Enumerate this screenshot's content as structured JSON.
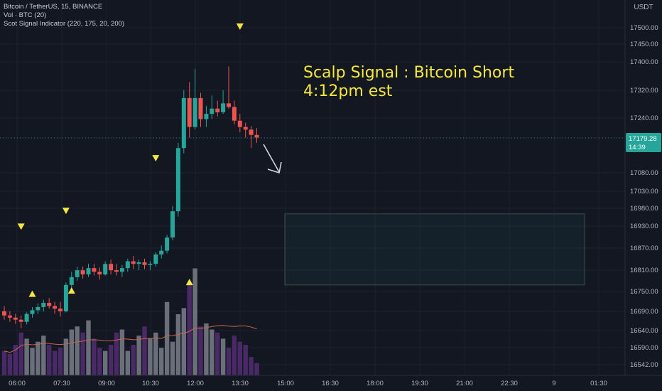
{
  "legend": {
    "symbol": "Bitcoin / TetherUS, 15, BINANCE",
    "volume": "Vol · BTC (20)",
    "indicator": "Scot Signal Indicator (220, 175, 20, 200)"
  },
  "annotation": {
    "line1": "Scalp Signal : Bitcoin Short",
    "line2": "4:12pm est"
  },
  "price_badge": {
    "price": "17179.28",
    "countdown": "14:39"
  },
  "colors": {
    "background": "#131722",
    "up": "#26a69a",
    "down": "#ef5350",
    "signal": "#f5e73b",
    "volume_up": "#6b6f7a",
    "volume_down": "#4a2a66",
    "volume_ma": "#c9664a",
    "price_line": "#26a69a"
  },
  "chart_data": {
    "type": "candlestick",
    "currency": "USDT",
    "x_tick_labels": [
      "06:00",
      "07:30",
      "09:00",
      "10:30",
      "12:00",
      "13:30",
      "15:00",
      "16:30",
      "18:00",
      "19:30",
      "21:00",
      "22:30",
      "9",
      "01:30"
    ],
    "y_tick_labels": [
      "17500.00",
      "17450.00",
      "17400.00",
      "17320.00",
      "17240.00",
      "17179.28",
      "17080.00",
      "17030.00",
      "16980.00",
      "16930.00",
      "16870.00",
      "16810.00",
      "16750.00",
      "16690.00",
      "16640.00",
      "16590.00",
      "16542.00"
    ],
    "ohlc": [
      [
        16850,
        16860,
        16834,
        16842
      ],
      [
        16842,
        16850,
        16830,
        16838
      ],
      [
        16838,
        16845,
        16826,
        16834
      ],
      [
        16834,
        16842,
        16818,
        16830
      ],
      [
        16830,
        16848,
        16825,
        16845
      ],
      [
        16845,
        16858,
        16838,
        16852
      ],
      [
        16852,
        16865,
        16845,
        16858
      ],
      [
        16858,
        16872,
        16850,
        16866
      ],
      [
        16866,
        16875,
        16855,
        16860
      ],
      [
        16860,
        16868,
        16845,
        16855
      ],
      [
        16855,
        16868,
        16840,
        16850
      ],
      [
        16850,
        16905,
        16848,
        16900
      ],
      [
        16900,
        16925,
        16892,
        16915
      ],
      [
        16915,
        16935,
        16908,
        16928
      ],
      [
        16928,
        16935,
        16912,
        16920
      ],
      [
        16920,
        16940,
        16915,
        16932
      ],
      [
        16932,
        16940,
        16918,
        16925
      ],
      [
        16925,
        16933,
        16910,
        16920
      ],
      [
        16920,
        16945,
        16918,
        16940
      ],
      [
        16940,
        16948,
        16920,
        16928
      ],
      [
        16928,
        16940,
        16918,
        16925
      ],
      [
        16925,
        16938,
        16915,
        16932
      ],
      [
        16932,
        16950,
        16925,
        16945
      ],
      [
        16945,
        16955,
        16930,
        16940
      ],
      [
        16940,
        16948,
        16928,
        16943
      ],
      [
        16943,
        16950,
        16930,
        16938
      ],
      [
        16938,
        16945,
        16928,
        16940
      ],
      [
        16940,
        16962,
        16935,
        16958
      ],
      [
        16958,
        16975,
        16950,
        16965
      ],
      [
        16965,
        16995,
        16960,
        16990
      ],
      [
        16990,
        17050,
        16985,
        17040
      ],
      [
        17040,
        17170,
        17030,
        17160
      ],
      [
        17160,
        17270,
        17150,
        17255
      ],
      [
        17255,
        17285,
        17180,
        17200
      ],
      [
        17200,
        17310,
        17195,
        17255
      ],
      [
        17255,
        17265,
        17200,
        17215
      ],
      [
        17215,
        17240,
        17200,
        17225
      ],
      [
        17225,
        17260,
        17215,
        17235
      ],
      [
        17235,
        17250,
        17220,
        17228
      ],
      [
        17228,
        17270,
        17225,
        17245
      ],
      [
        17245,
        17315,
        17235,
        17238
      ],
      [
        17238,
        17250,
        17205,
        17212
      ],
      [
        17212,
        17225,
        17190,
        17200
      ],
      [
        17200,
        17208,
        17180,
        17195
      ],
      [
        17195,
        17202,
        17160,
        17185
      ],
      [
        17185,
        17198,
        17170,
        17180
      ]
    ],
    "volume": [
      8,
      7,
      10,
      14,
      12,
      9,
      11,
      13,
      10,
      8,
      9,
      12,
      15,
      16,
      14,
      18,
      12,
      9,
      8,
      10,
      14,
      15,
      8,
      10,
      13,
      16,
      12,
      14,
      9,
      24,
      11,
      20,
      22,
      30,
      35,
      16,
      17,
      15,
      14,
      12,
      9,
      13,
      11,
      10,
      6,
      4
    ],
    "signals_down": [
      {
        "bar": 3,
        "price": 17010
      },
      {
        "bar": 11,
        "price": 17040
      },
      {
        "bar": 27,
        "price": 17140
      },
      {
        "bar": 42,
        "price": 17390
      }
    ],
    "signals_up": [
      {
        "bar": 5,
        "vol_level": 31
      },
      {
        "bar": 12,
        "vol_level": 33
      },
      {
        "bar": 33,
        "vol_level": 38
      }
    ],
    "target_zone": {
      "price_high": 17035,
      "price_low": 16900,
      "time_start": "15:00",
      "time_end": "21:45"
    },
    "current_price": 17179.28,
    "ylim": [
      16542,
      17535
    ],
    "grid": true
  }
}
